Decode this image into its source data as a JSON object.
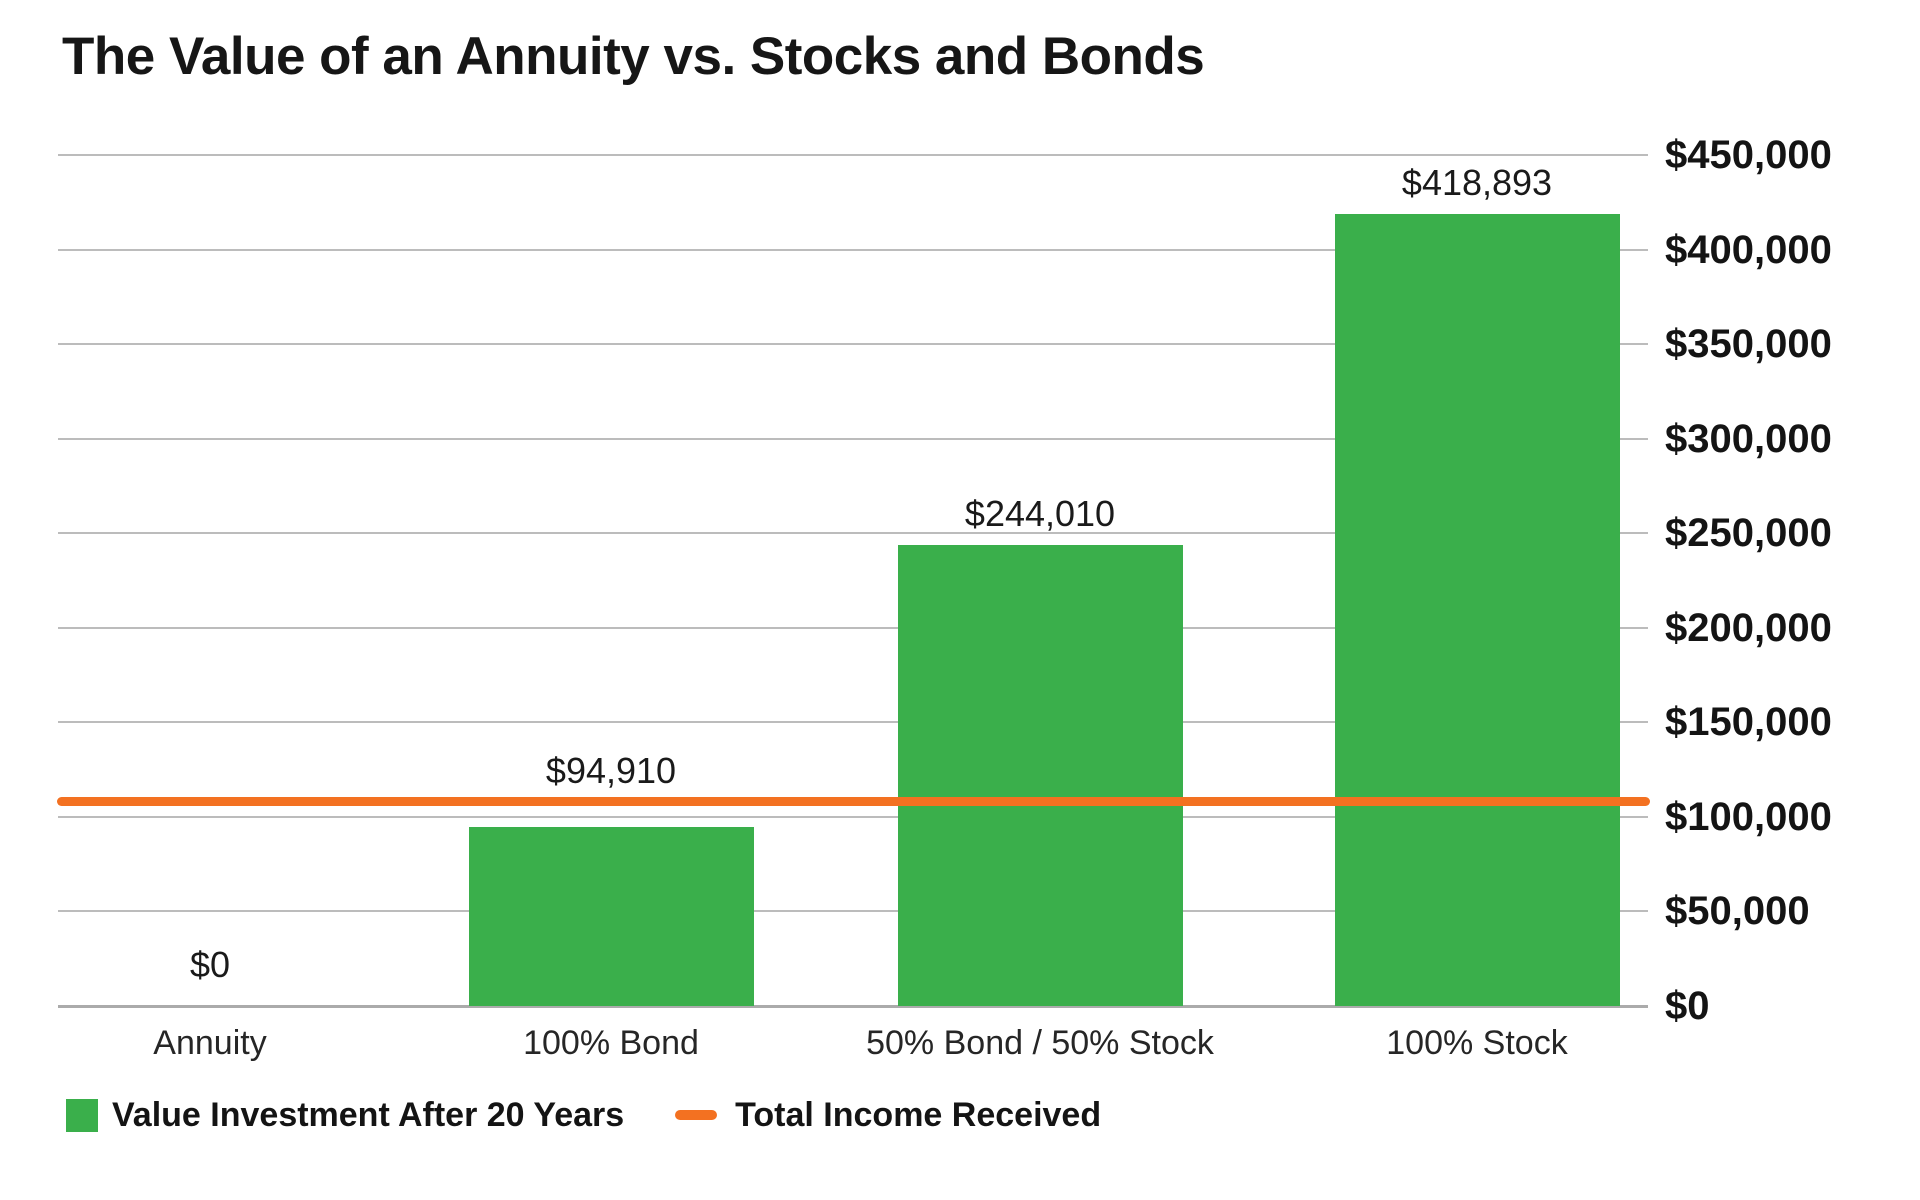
{
  "title": "The Value of an Annuity vs. Stocks and Bonds",
  "colors": {
    "bar_green": "#3aaf4b",
    "line_orange": "#f37121",
    "gridline_gray": "#bcbcbc",
    "axis_gray": "#ababab",
    "text_dark": "#141414"
  },
  "legend": {
    "items": [
      {
        "swatch": "green-square",
        "label": "Value Investment After 20 Years"
      },
      {
        "swatch": "orange-dash",
        "label": "Total Income Received"
      }
    ]
  },
  "chart_data": {
    "type": "bar",
    "title": "The Value of an Annuity vs. Stocks and Bonds",
    "categories": [
      "Annuity",
      "100% Bond",
      "50% Bond / 50% Stock",
      "100% Stock"
    ],
    "series": [
      {
        "name": "Value Investment After 20 Years",
        "type": "bar",
        "color": "#3aaf4b",
        "values": [
          0,
          94910,
          244010,
          418893
        ],
        "value_labels": [
          "$0",
          "$94,910",
          "$244,010",
          "$418,893"
        ]
      },
      {
        "name": "Total Income Received",
        "type": "line",
        "color": "#f37121",
        "value_estimate": 108000
      }
    ],
    "y_axis": {
      "position": "right",
      "min": 0,
      "max": 450000,
      "step": 50000,
      "tick_labels": [
        "$0",
        "$50,000",
        "$100,000",
        "$150,000",
        "$200,000",
        "$250,000",
        "$300,000",
        "$350,000",
        "$400,000",
        "$450,000"
      ]
    },
    "x_axis": {
      "labels": [
        "Annuity",
        "100% Bond",
        "50% Bond / 50% Stock",
        "100% Stock"
      ]
    },
    "grid": true,
    "legend_position": "bottom-left"
  }
}
